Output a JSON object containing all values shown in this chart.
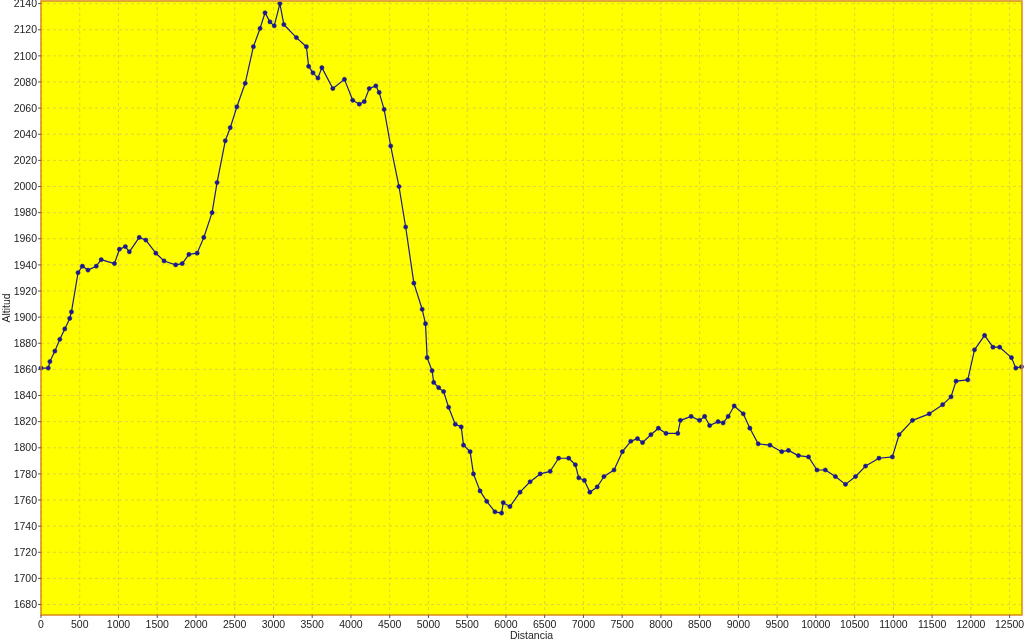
{
  "chart_data": {
    "type": "line",
    "xlabel": "Distancia",
    "ylabel": "Altitud",
    "xlim": [
      0,
      12660
    ],
    "ylim": [
      1672,
      2142
    ],
    "xticks": [
      0,
      500,
      1000,
      1500,
      2000,
      2500,
      3000,
      3500,
      4000,
      4500,
      5000,
      5500,
      6000,
      6500,
      7000,
      7500,
      8000,
      8500,
      9000,
      9500,
      10000,
      10500,
      11000,
      11500,
      12000,
      12500
    ],
    "yticks": [
      1680,
      1700,
      1720,
      1740,
      1760,
      1780,
      1800,
      1820,
      1840,
      1860,
      1880,
      1900,
      1920,
      1940,
      1960,
      1980,
      2000,
      2020,
      2040,
      2060,
      2080,
      2100,
      2120,
      2140
    ],
    "grid": true,
    "marker": "circle",
    "line_style": "solid",
    "series": [
      {
        "color": "#1a1a8c",
        "x": [
          0,
          94,
          115,
          179,
          243,
          307,
          371,
          393,
          478,
          534,
          606,
          713,
          777,
          948,
          1012,
          1089,
          1140,
          1268,
          1353,
          1482,
          1588,
          1738,
          1823,
          1909,
          2015,
          2101,
          2208,
          2272,
          2378,
          2442,
          2528,
          2635,
          2741,
          2827,
          2891,
          2955,
          3010,
          3083,
          3134,
          3296,
          3425,
          3454,
          3510,
          3574,
          3625,
          3766,
          3916,
          4023,
          4108,
          4172,
          4236,
          4321,
          4364,
          4428,
          4513,
          4620,
          4706,
          4812,
          4919,
          4962,
          4983,
          5047,
          5068,
          5132,
          5196,
          5260,
          5346,
          5423,
          5453,
          5538,
          5581,
          5666,
          5752,
          5858,
          5944,
          5965,
          6052,
          6182,
          6312,
          6442,
          6571,
          6680,
          6810,
          6896,
          6940,
          7013,
          7083,
          7178,
          7265,
          7395,
          7503,
          7611,
          7698,
          7763,
          7871,
          7967,
          8066,
          8218,
          8252,
          8390,
          8499,
          8564,
          8629,
          8738,
          8803,
          8868,
          8946,
          9063,
          9148,
          9256,
          9408,
          9559,
          9646,
          9775,
          9905,
          10014,
          10122,
          10252,
          10382,
          10512,
          10641,
          10814,
          10987,
          11074,
          11247,
          11463,
          11636,
          11744,
          11809,
          11960,
          12047,
          12177,
          12285,
          12372,
          12524,
          12580,
          12654
        ],
        "values": [
          1861,
          1861,
          1866,
          1874,
          1883,
          1891,
          1899,
          1904,
          1934,
          1939,
          1936,
          1939,
          1944,
          1941,
          1952,
          1954,
          1950,
          1961,
          1959,
          1949,
          1943,
          1940,
          1941,
          1948,
          1949,
          1961,
          1980,
          2003,
          2035,
          2045,
          2061,
          2079,
          2107,
          2121,
          2133,
          2126,
          2123,
          2140,
          2124,
          2114,
          2107,
          2092,
          2087,
          2083,
          2091,
          2075,
          2082,
          2066,
          2063,
          2065,
          2075,
          2077,
          2072,
          2059,
          2031,
          2000,
          1969,
          1926,
          1906,
          1895,
          1869,
          1859,
          1850,
          1846,
          1843,
          1831,
          1818,
          1816,
          1802,
          1797,
          1780,
          1767,
          1759,
          1751,
          1750,
          1758,
          1755,
          1766,
          1774,
          1780,
          1782,
          1792,
          1792,
          1787,
          1777,
          1775,
          1766,
          1770,
          1778,
          1783,
          1797,
          1805,
          1807,
          1804,
          1810,
          1815,
          1811,
          1811,
          1821,
          1824,
          1821,
          1824,
          1817,
          1820,
          1819,
          1824,
          1832,
          1826,
          1815,
          1803,
          1802,
          1797,
          1798,
          1794,
          1793,
          1783,
          1783,
          1778,
          1772,
          1778,
          1786,
          1792,
          1793,
          1810,
          1821,
          1826,
          1833,
          1839,
          1851,
          1852,
          1875,
          1886,
          1877,
          1877,
          1869,
          1861,
          1862
        ]
      }
    ]
  }
}
